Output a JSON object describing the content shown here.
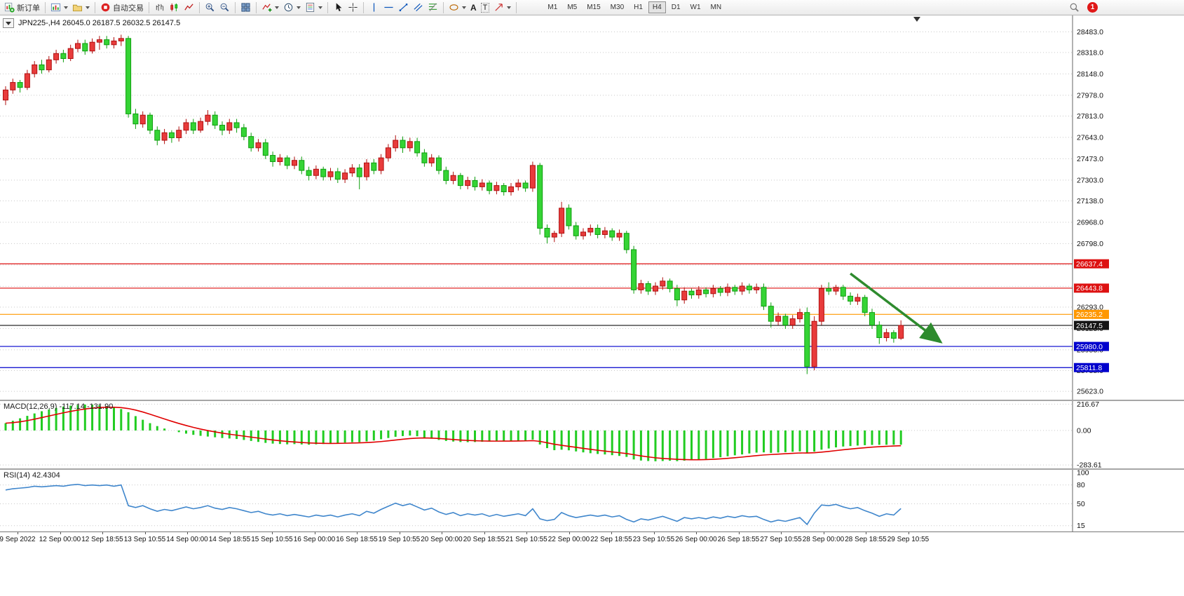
{
  "toolbar": {
    "new_order_label": "新订单",
    "auto_trading_label": "自动交易",
    "text_tool_label": "A",
    "label_tool_label": "T",
    "timeframes": [
      "M1",
      "M5",
      "M15",
      "M30",
      "H1",
      "H4",
      "D1",
      "W1",
      "MN"
    ],
    "active_timeframe": "H4",
    "notification_count": "1"
  },
  "chart_window": {
    "title": "JPN225-,H4 26045.0 26187.5 26032.5 26147.5",
    "symbol": "JPN225-",
    "timeframe": "H4",
    "open": "26045.0",
    "high": "26187.5",
    "low": "26032.5",
    "close": "26147.5"
  },
  "chart_data": [
    {
      "type": "candlestick",
      "name": "JPN225- H4 price",
      "price_range": [
        25590,
        28535
      ],
      "grid_prices": [
        28483,
        28318,
        28148,
        27978,
        27813,
        27643,
        27473,
        27303,
        27138,
        26968,
        26798,
        26628,
        26458,
        26293,
        26123,
        25953,
        25788,
        25623
      ],
      "price_axis_labels": [
        "28483.0",
        "28318.0",
        "28148.0",
        "27978.0",
        "27813.0",
        "27643.0",
        "27473.0",
        "27303.0",
        "27138.0",
        "26968.0",
        "26798.0",
        "26628.0",
        "26458.0",
        "26293.0",
        "26123.0",
        "25953.0",
        "25788.0",
        "25623.0"
      ],
      "colors": {
        "bull": "#e83b3b",
        "bull_border": "#b01010",
        "bear": "#35d435",
        "bear_border": "#0f9e0f"
      },
      "hlines": [
        {
          "value": 26637.4,
          "label": "26637.4",
          "color": "#dd1111"
        },
        {
          "value": 26443.8,
          "label": "26443.8",
          "color": "#dd1111"
        },
        {
          "value": 26235.2,
          "label": "26235.2",
          "color": "#ff9800"
        },
        {
          "value": 26147.5,
          "label": "26147.5",
          "color": "#151515"
        },
        {
          "value": 25980.0,
          "label": "25980.0",
          "color": "#0000cd"
        },
        {
          "value": 25811.8,
          "label": "25811.8",
          "color": "#0000cd"
        }
      ],
      "arrow_annotation": {
        "x1_bar": 117,
        "p1": 26560,
        "x2_bar": 129.5,
        "p2": 26015,
        "color": "#2e8b2e"
      },
      "candles": [
        [
          27940,
          28050,
          27900,
          28020
        ],
        [
          28020,
          28110,
          27990,
          28080
        ],
        [
          28080,
          28100,
          28000,
          28040
        ],
        [
          28040,
          28180,
          28020,
          28150
        ],
        [
          28150,
          28250,
          28120,
          28220
        ],
        [
          28220,
          28260,
          28150,
          28180
        ],
        [
          28180,
          28290,
          28160,
          28260
        ],
        [
          28260,
          28340,
          28230,
          28310
        ],
        [
          28310,
          28340,
          28240,
          28270
        ],
        [
          28270,
          28380,
          28250,
          28350
        ],
        [
          28350,
          28420,
          28320,
          28390
        ],
        [
          28390,
          28420,
          28300,
          28330
        ],
        [
          28330,
          28430,
          28310,
          28400
        ],
        [
          28400,
          28450,
          28340,
          28420
        ],
        [
          28420,
          28450,
          28350,
          28380
        ],
        [
          28380,
          28440,
          28350,
          28410
        ],
        [
          28410,
          28460,
          28370,
          28430
        ],
        [
          28430,
          28450,
          27800,
          27830
        ],
        [
          27830,
          27870,
          27710,
          27750
        ],
        [
          27750,
          27850,
          27720,
          27820
        ],
        [
          27820,
          27840,
          27670,
          27700
        ],
        [
          27700,
          27730,
          27580,
          27620
        ],
        [
          27620,
          27710,
          27590,
          27680
        ],
        [
          27680,
          27700,
          27600,
          27640
        ],
        [
          27640,
          27730,
          27610,
          27700
        ],
        [
          27700,
          27790,
          27670,
          27760
        ],
        [
          27760,
          27790,
          27670,
          27700
        ],
        [
          27700,
          27800,
          27680,
          27770
        ],
        [
          27770,
          27860,
          27740,
          27820
        ],
        [
          27820,
          27850,
          27710,
          27740
        ],
        [
          27740,
          27770,
          27660,
          27700
        ],
        [
          27700,
          27790,
          27670,
          27760
        ],
        [
          27760,
          27790,
          27680,
          27720
        ],
        [
          27720,
          27750,
          27620,
          27650
        ],
        [
          27650,
          27680,
          27530,
          27560
        ],
        [
          27560,
          27630,
          27530,
          27600
        ],
        [
          27600,
          27630,
          27470,
          27500
        ],
        [
          27500,
          27530,
          27410,
          27450
        ],
        [
          27450,
          27510,
          27420,
          27480
        ],
        [
          27480,
          27500,
          27390,
          27420
        ],
        [
          27420,
          27490,
          27390,
          27460
        ],
        [
          27460,
          27490,
          27350,
          27380
        ],
        [
          27380,
          27410,
          27300,
          27340
        ],
        [
          27340,
          27420,
          27310,
          27390
        ],
        [
          27390,
          27410,
          27300,
          27330
        ],
        [
          27330,
          27400,
          27300,
          27370
        ],
        [
          27370,
          27400,
          27280,
          27310
        ],
        [
          27310,
          27390,
          27280,
          27360
        ],
        [
          27360,
          27430,
          27330,
          27400
        ],
        [
          27400,
          27430,
          27230,
          27330
        ],
        [
          27330,
          27470,
          27300,
          27440
        ],
        [
          27440,
          27470,
          27350,
          27380
        ],
        [
          27380,
          27510,
          27350,
          27480
        ],
        [
          27480,
          27590,
          27450,
          27560
        ],
        [
          27560,
          27660,
          27530,
          27620
        ],
        [
          27620,
          27650,
          27520,
          27560
        ],
        [
          27560,
          27640,
          27530,
          27610
        ],
        [
          27610,
          27640,
          27490,
          27520
        ],
        [
          27520,
          27550,
          27410,
          27440
        ],
        [
          27440,
          27510,
          27410,
          27480
        ],
        [
          27480,
          27500,
          27350,
          27380
        ],
        [
          27380,
          27410,
          27270,
          27300
        ],
        [
          27300,
          27370,
          27270,
          27340
        ],
        [
          27340,
          27360,
          27230,
          27260
        ],
        [
          27260,
          27330,
          27230,
          27300
        ],
        [
          27300,
          27330,
          27220,
          27250
        ],
        [
          27250,
          27310,
          27220,
          27280
        ],
        [
          27280,
          27300,
          27190,
          27220
        ],
        [
          27220,
          27290,
          27190,
          27260
        ],
        [
          27260,
          27280,
          27180,
          27210
        ],
        [
          27210,
          27280,
          27180,
          27250
        ],
        [
          27250,
          27310,
          27220,
          27280
        ],
        [
          27280,
          27300,
          27210,
          27240
        ],
        [
          27240,
          27450,
          27210,
          27420
        ],
        [
          27420,
          27440,
          26870,
          26920
        ],
        [
          26920,
          26950,
          26800,
          26850
        ],
        [
          26850,
          26900,
          26810,
          26880
        ],
        [
          26880,
          27130,
          26850,
          27080
        ],
        [
          27080,
          27110,
          26910,
          26940
        ],
        [
          26940,
          26970,
          26830,
          26860
        ],
        [
          26860,
          26920,
          26830,
          26890
        ],
        [
          26890,
          26950,
          26860,
          26920
        ],
        [
          26920,
          26950,
          26840,
          26870
        ],
        [
          26870,
          26930,
          26840,
          26900
        ],
        [
          26900,
          26920,
          26820,
          26850
        ],
        [
          26850,
          26910,
          26820,
          26880
        ],
        [
          26880,
          26900,
          26720,
          26750
        ],
        [
          26750,
          26780,
          26400,
          26430
        ],
        [
          26430,
          26510,
          26400,
          26480
        ],
        [
          26480,
          26500,
          26390,
          26420
        ],
        [
          26420,
          26490,
          26390,
          26460
        ],
        [
          26460,
          26530,
          26430,
          26500
        ],
        [
          26500,
          26520,
          26410,
          26440
        ],
        [
          26440,
          26470,
          26300,
          26350
        ],
        [
          26350,
          26450,
          26320,
          26420
        ],
        [
          26420,
          26440,
          26360,
          26390
        ],
        [
          26390,
          26460,
          26360,
          26430
        ],
        [
          26430,
          26450,
          26370,
          26400
        ],
        [
          26400,
          26470,
          26370,
          26440
        ],
        [
          26440,
          26460,
          26380,
          26410
        ],
        [
          26410,
          26480,
          26380,
          26450
        ],
        [
          26450,
          26470,
          26390,
          26420
        ],
        [
          26420,
          26490,
          26390,
          26460
        ],
        [
          26460,
          26480,
          26400,
          26430
        ],
        [
          26430,
          26480,
          26400,
          26450
        ],
        [
          26450,
          26480,
          26270,
          26300
        ],
        [
          26300,
          26330,
          26130,
          26180
        ],
        [
          26180,
          26250,
          26150,
          26220
        ],
        [
          26220,
          26240,
          26120,
          26150
        ],
        [
          26150,
          26230,
          26120,
          26200
        ],
        [
          26200,
          26280,
          26170,
          26250
        ],
        [
          26250,
          26290,
          25760,
          25820
        ],
        [
          25820,
          26220,
          25790,
          26180
        ],
        [
          26180,
          26470,
          26150,
          26440
        ],
        [
          26440,
          26490,
          26390,
          26420
        ],
        [
          26420,
          26470,
          26390,
          26450
        ],
        [
          26450,
          26470,
          26350,
          26380
        ],
        [
          26380,
          26410,
          26310,
          26340
        ],
        [
          26340,
          26400,
          26310,
          26370
        ],
        [
          26370,
          26390,
          26220,
          26250
        ],
        [
          26250,
          26280,
          26120,
          26150
        ],
        [
          26150,
          26180,
          26000,
          26050
        ],
        [
          26050,
          26120,
          26020,
          26090
        ],
        [
          26090,
          26110,
          26010,
          26045
        ],
        [
          26045,
          26187.5,
          26032.5,
          26147.5
        ]
      ]
    },
    {
      "type": "bar",
      "name": "MACD",
      "label": "MACD(12,26,9) -117.14 -131.90",
      "main_value": -117.14,
      "signal_value": -131.9,
      "axis_labels": [
        "216.67",
        "0.00",
        "-283.61"
      ],
      "axis_values": [
        216.67,
        0,
        -283.61
      ],
      "range": [
        -300,
        230
      ],
      "histogram_color": "#22cc22",
      "signal_color": "#e00000",
      "histogram": [
        60,
        80,
        100,
        120,
        140,
        158,
        172,
        185,
        196,
        204,
        210,
        213,
        212,
        208,
        200,
        190,
        176,
        150,
        118,
        88,
        60,
        36,
        16,
        0,
        -14,
        -26,
        -36,
        -44,
        -50,
        -56,
        -62,
        -66,
        -70,
        -78,
        -86,
        -94,
        -102,
        -108,
        -111,
        -114,
        -112,
        -115,
        -117,
        -114,
        -111,
        -108,
        -105,
        -100,
        -96,
        -96,
        -90,
        -82,
        -72,
        -62,
        -52,
        -46,
        -42,
        -48,
        -58,
        -68,
        -78,
        -86,
        -91,
        -95,
        -96,
        -95,
        -93,
        -91,
        -89,
        -87,
        -85,
        -84,
        -82,
        -75,
        -115,
        -145,
        -162,
        -158,
        -163,
        -172,
        -180,
        -187,
        -193,
        -197,
        -203,
        -209,
        -217,
        -238,
        -247,
        -251,
        -253,
        -251,
        -249,
        -252,
        -248,
        -245,
        -240,
        -234,
        -227,
        -220,
        -212,
        -204,
        -197,
        -189,
        -182,
        -180,
        -184,
        -181,
        -178,
        -175,
        -172,
        -187,
        -174,
        -158,
        -148,
        -139,
        -132,
        -128,
        -124,
        -121,
        -119,
        -118,
        -117.6,
        -117.3,
        -117.14
      ]
    },
    {
      "type": "line",
      "name": "RSI",
      "label": "RSI(14) 42.4304",
      "current_value": 42.4304,
      "axis_labels": [
        "100",
        "80",
        "50",
        "15"
      ],
      "axis_values": [
        100,
        80,
        50,
        15
      ],
      "levels": [
        80,
        50,
        15
      ],
      "range": [
        8,
        102
      ],
      "line_color": "#3f86cc",
      "values": [
        72,
        74,
        75,
        76,
        78,
        77,
        78,
        79,
        78,
        80,
        81,
        79,
        80,
        79,
        80,
        78,
        80,
        47,
        44,
        47,
        42,
        38,
        41,
        39,
        42,
        45,
        42,
        44,
        47,
        43,
        41,
        44,
        42,
        39,
        36,
        38,
        34,
        32,
        34,
        31,
        33,
        31,
        29,
        32,
        30,
        32,
        29,
        32,
        34,
        31,
        38,
        35,
        41,
        46,
        51,
        47,
        50,
        45,
        40,
        43,
        37,
        33,
        36,
        31,
        34,
        32,
        34,
        30,
        33,
        30,
        32,
        34,
        31,
        42,
        26,
        23,
        25,
        36,
        31,
        28,
        30,
        32,
        30,
        32,
        29,
        31,
        25,
        21,
        26,
        24,
        27,
        30,
        26,
        22,
        28,
        26,
        28,
        26,
        29,
        27,
        30,
        28,
        31,
        29,
        30,
        25,
        21,
        24,
        22,
        25,
        28,
        17,
        35,
        48,
        47,
        49,
        45,
        42,
        44,
        39,
        35,
        30,
        34,
        32,
        42.43
      ]
    }
  ],
  "time_axis": {
    "labels": [
      "9 Sep 2022",
      "12 Sep 00:00",
      "12 Sep 18:55",
      "13 Sep 10:55",
      "14 Sep 00:00",
      "14 Sep 18:55",
      "15 Sep 10:55",
      "16 Sep 00:00",
      "16 Sep 18:55",
      "19 Sep 10:55",
      "20 Sep 00:00",
      "20 Sep 18:55",
      "21 Sep 10:55",
      "22 Sep 00:00",
      "22 Sep 18:55",
      "23 Sep 10:55",
      "26 Sep 00:00",
      "26 Sep 18:55",
      "27 Sep 10:55",
      "28 Sep 00:00",
      "28 Sep 18:55",
      "29 Sep 10:55"
    ]
  }
}
